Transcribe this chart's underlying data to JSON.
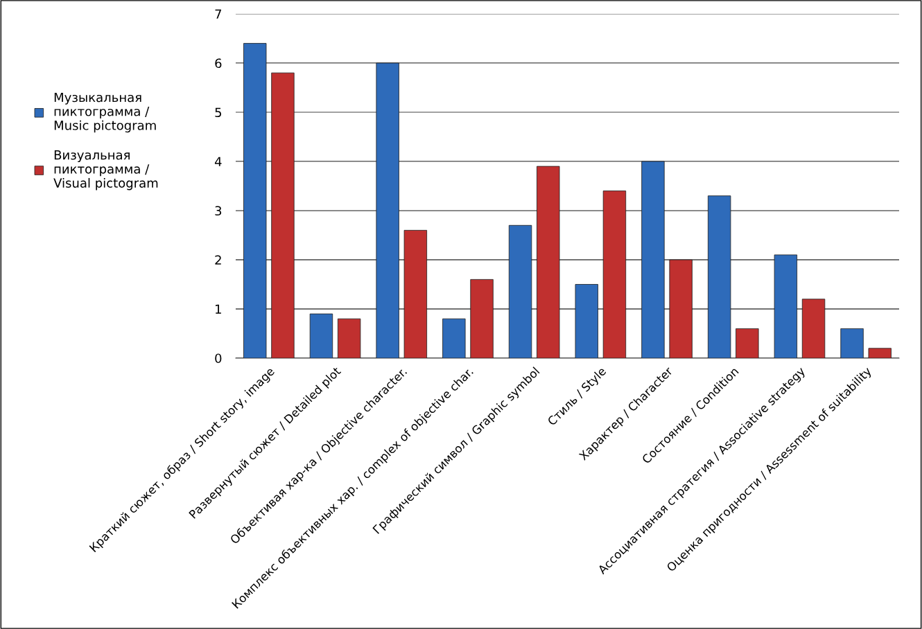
{
  "chart_data": {
    "type": "bar",
    "categories": [
      "Краткий сюжет, образ / Short story, image",
      "Развернутый сюжет / Detailed plot",
      "Объективая хар-ка / Objective character.",
      "Комплекс объективных хар. / complex of objective char.",
      "Графический символ / Graphic symbol",
      "Стиль / Style",
      "Характер / Character",
      "Состояние / Condition",
      "Ассоциативная стратегия / Associative strategy",
      "Оценка пригодности / Assessment of suitability"
    ],
    "series": [
      {
        "name": "Музыкальная\nпиктограмма /\nMusic pictogram",
        "color": "#2e6bba",
        "values": [
          6.4,
          0.9,
          6.0,
          0.8,
          2.7,
          1.5,
          4.0,
          3.3,
          2.1,
          0.6
        ]
      },
      {
        "name": "Визуальная\nпиктограмма /\nVisual pictogram",
        "color": "#c0302f",
        "values": [
          5.8,
          0.8,
          2.6,
          1.6,
          3.9,
          3.4,
          2.0,
          0.6,
          1.2,
          0.2
        ]
      }
    ],
    "ylim": [
      0,
      7
    ],
    "yticks": [
      0,
      1,
      2,
      3,
      4,
      5,
      6,
      7
    ],
    "grid": "y",
    "legend": "left"
  }
}
